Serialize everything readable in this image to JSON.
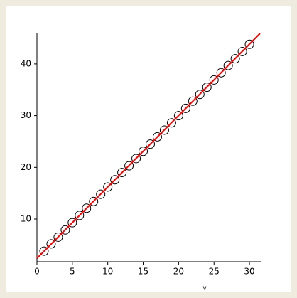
{
  "chart_data": {
    "type": "scatter",
    "xlabel": "v",
    "x": [
      1,
      2,
      3,
      4,
      5,
      6,
      7,
      8,
      9,
      10,
      11,
      12,
      13,
      14,
      15,
      16,
      17,
      18,
      19,
      20,
      21,
      22,
      23,
      24,
      25,
      26,
      27,
      28,
      29,
      30
    ],
    "series": [
      {
        "color": "#000000",
        "marker": "circle",
        "values": [
          3.8,
          5.2,
          6.5,
          7.9,
          9.3,
          10.7,
          12.1,
          13.4,
          14.8,
          16.2,
          17.6,
          19.0,
          20.3,
          21.7,
          23.1,
          24.5,
          25.9,
          27.2,
          28.6,
          30.0,
          31.4,
          32.8,
          34.1,
          35.5,
          36.9,
          38.3,
          39.7,
          41.0,
          42.4,
          43.8
        ]
      },
      {
        "color": "#ff0000",
        "marker": "line",
        "x": [
          0,
          31.5
        ],
        "values": [
          2.4,
          45.9
        ]
      }
    ],
    "xlim": [
      0,
      31.6
    ],
    "ylim": [
      1.75,
      45.9
    ],
    "xticks": [
      0,
      5,
      10,
      15,
      20,
      25,
      30
    ],
    "yticks": [
      10,
      20,
      30,
      40
    ]
  }
}
